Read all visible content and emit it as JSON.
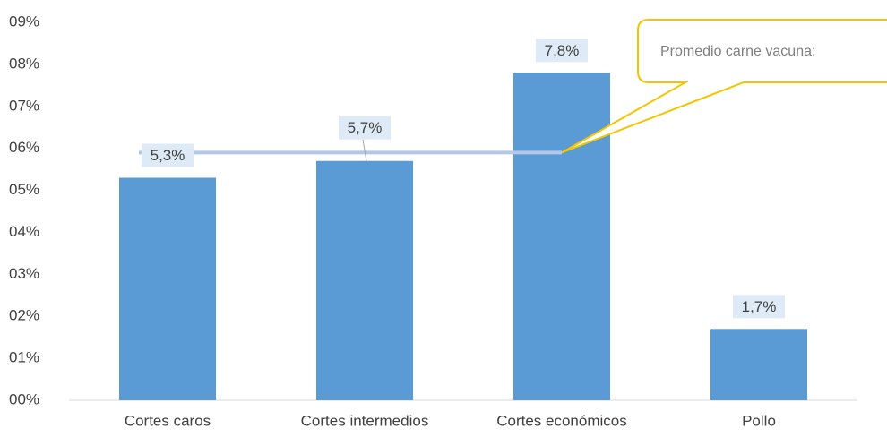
{
  "chart_data": {
    "type": "bar",
    "categories": [
      "Cortes caros",
      "Cortes intermedios",
      "Cortes económicos",
      "Pollo"
    ],
    "values": [
      5.3,
      5.7,
      7.8,
      1.7
    ],
    "value_labels": [
      "5,3%",
      "5,7%",
      "7,8%",
      "1,7%"
    ],
    "color": "#5b9bd5",
    "ylim": [
      0,
      9
    ],
    "yticks": [
      {
        "value": 0,
        "label": "00%"
      },
      {
        "value": 1,
        "label": "01%"
      },
      {
        "value": 2,
        "label": "02%"
      },
      {
        "value": 3,
        "label": "03%"
      },
      {
        "value": 4,
        "label": "04%"
      },
      {
        "value": 5,
        "label": "05%"
      },
      {
        "value": 6,
        "label": "06%"
      },
      {
        "value": 7,
        "label": "07%"
      },
      {
        "value": 8,
        "label": "08%"
      },
      {
        "value": 9,
        "label": "09%"
      }
    ],
    "grid": false,
    "reference_line": {
      "value": 5.9,
      "label": "Promedio carne vacuna:",
      "color": "#b4c7e7"
    }
  }
}
